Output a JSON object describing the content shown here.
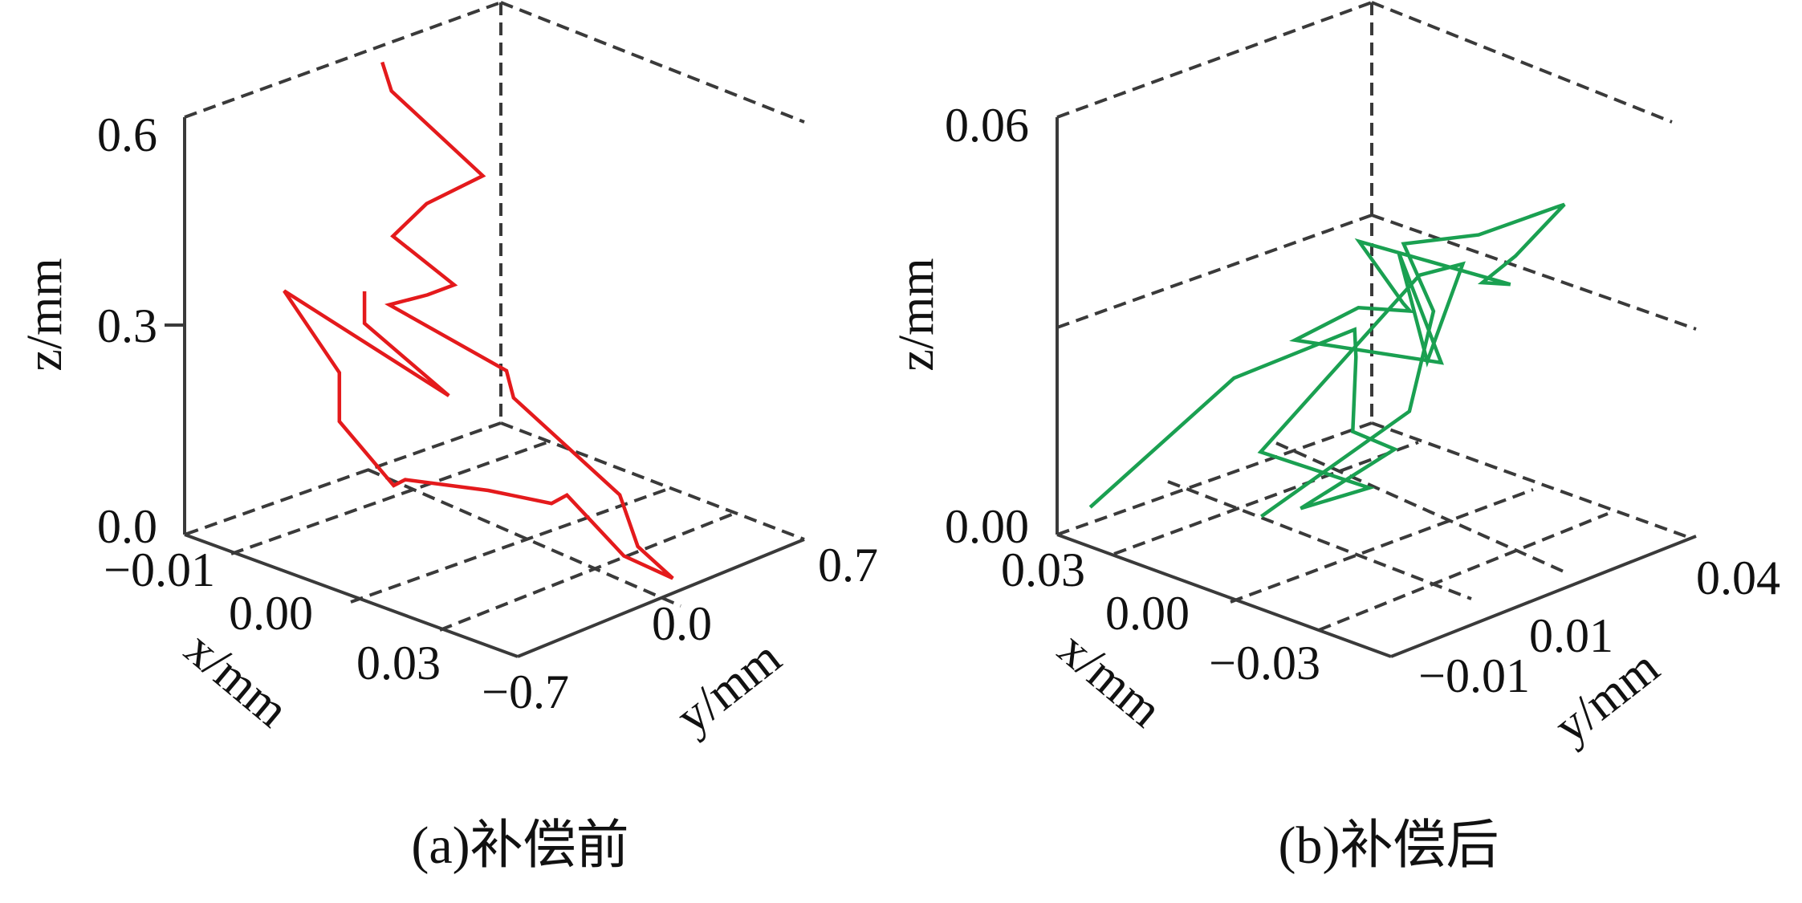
{
  "chart_data": [
    {
      "type": "line3d",
      "caption": "(a)补偿前",
      "xlabel": "x/mm",
      "ylabel": "y/mm",
      "zlabel": "z/mm",
      "x_ticks": [
        "−0.01",
        "0.00",
        "0.03"
      ],
      "y_ticks": [
        "−0.7",
        "0.0",
        "0.7"
      ],
      "z_ticks": [
        "0.0",
        "0.3",
        "0.6"
      ],
      "xlim": [
        -0.01,
        0.035
      ],
      "ylim": [
        -0.7,
        0.7
      ],
      "zlim": [
        0.0,
        0.6
      ],
      "grid": true,
      "color": "#e41a1c",
      "series": [
        {
          "points": [
            [
              0.006,
              -0.4,
              0.376
            ],
            [
              0.006,
              -0.4,
              0.33
            ],
            [
              0.021,
              -0.53,
              0.3
            ],
            [
              -0.009,
              -0.25,
              0.3
            ],
            [
              -0.009,
              0.02,
              0.15
            ],
            [
              -0.009,
              0.02,
              0.08
            ],
            [
              0.0,
              -0.04,
              0.03
            ],
            [
              0.001,
              -0.02,
              0.04
            ],
            [
              0.01,
              0.06,
              0.05
            ],
            [
              0.018,
              0.08,
              0.06
            ],
            [
              0.014,
              0.3,
              0.03
            ],
            [
              0.025,
              0.18,
              0.0
            ],
            [
              0.033,
              0.13,
              0.005
            ],
            [
              0.028,
              0.14,
              0.03
            ],
            [
              0.025,
              0.16,
              0.09
            ],
            [
              0.009,
              0.22,
              0.16
            ],
            [
              0.005,
              0.33,
              0.17
            ],
            [
              -0.01,
              0.3,
              0.21
            ],
            [
              -0.009,
              0.45,
              0.21
            ],
            [
              -0.004,
              0.4,
              0.25
            ],
            [
              -0.012,
              0.39,
              0.29
            ],
            [
              -0.008,
              0.41,
              0.35
            ],
            [
              -0.004,
              0.54,
              0.39
            ],
            [
              -0.018,
              0.6,
              0.45
            ],
            [
              -0.014,
              0.41,
              0.53
            ]
          ]
        }
      ]
    },
    {
      "type": "line3d",
      "caption": "(b)补偿后",
      "xlabel": "x/mm",
      "ylabel": "y/mm",
      "zlabel": "z/mm",
      "x_ticks": [
        "0.03",
        "0.00",
        "−0.03"
      ],
      "y_ticks": [
        "−0.01",
        "0.01",
        "0.04"
      ],
      "z_ticks": [
        "0.00",
        "0.06"
      ],
      "xlim": [
        0.03,
        -0.045
      ],
      "ylim": [
        -0.015,
        0.045
      ],
      "zlim": [
        0.0,
        0.06
      ],
      "grid": true,
      "color": "#1aa051",
      "series": [
        {
          "points": [
            [
              0.026,
              -0.012,
              0.004
            ],
            [
              -0.004,
              -0.01,
              0.029
            ],
            [
              -0.014,
              0.005,
              0.034
            ],
            [
              -0.012,
              0.007,
              0.029
            ],
            [
              -0.009,
              0.009,
              0.017
            ],
            [
              -0.015,
              0.012,
              0.015
            ],
            [
              -0.003,
              0.004,
              0.006
            ],
            [
              -0.007,
              0.014,
              0.007
            ],
            [
              0.006,
              0.004,
              0.012
            ],
            [
              -0.024,
              0.009,
              0.043
            ],
            [
              -0.036,
              0.007,
              0.048
            ],
            [
              -0.036,
              0.0,
              0.036
            ],
            [
              -0.025,
              0.004,
              0.048
            ],
            [
              -0.038,
              0.001,
              0.036
            ],
            [
              -0.004,
              0.002,
              0.031
            ],
            [
              -0.008,
              0.011,
              0.034
            ],
            [
              -0.015,
              0.015,
              0.034
            ],
            [
              -0.018,
              0.011,
              0.037
            ],
            [
              -0.007,
              0.012,
              0.043
            ],
            [
              -0.025,
              0.026,
              0.037
            ],
            [
              -0.013,
              0.031,
              0.033
            ],
            [
              -0.009,
              0.041,
              0.033
            ],
            [
              -0.02,
              0.041,
              0.043
            ],
            [
              -0.024,
              0.036,
              0.045
            ],
            [
              -0.019,
              0.025,
              0.043
            ],
            [
              -0.017,
              0.012,
              0.045
            ],
            [
              -0.026,
              0.01,
              0.038
            ],
            [
              -0.024,
              0.007,
              0.024
            ],
            [
              -0.009,
              -0.009,
              0.01
            ]
          ]
        }
      ]
    }
  ]
}
